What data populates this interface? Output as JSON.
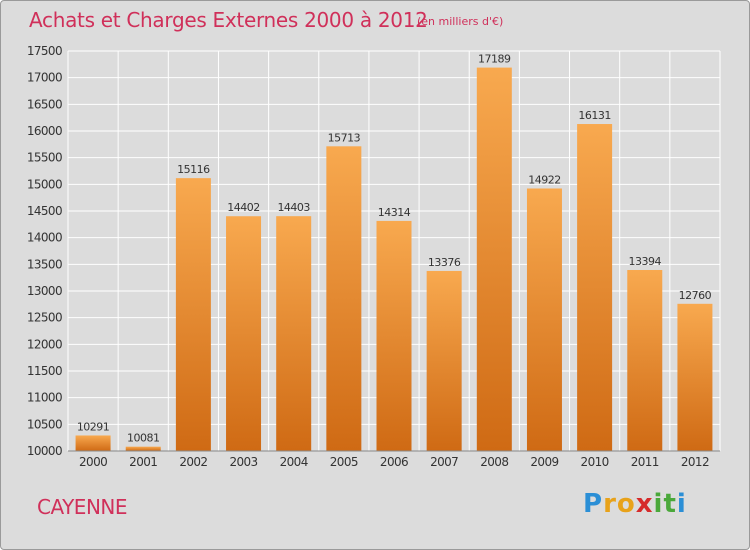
{
  "title": "Achats et Charges Externes 2000 à 2012",
  "unit": "(en milliers d'€)",
  "city": "CAYENNE",
  "logo": {
    "letters": [
      "P",
      "r",
      "o",
      "x",
      "i",
      "t",
      "i"
    ],
    "colors": [
      "#2b8fd6",
      "#e8a21a",
      "#e8a21a",
      "#d62b2b",
      "#4aa83a",
      "#4aa83a",
      "#2b8fd6"
    ]
  },
  "colors": {
    "title": "#d0305a",
    "bar_top": "#f8a94f",
    "bar_bottom": "#cf6a14",
    "background": "#dcdcdc",
    "grid": "#ffffff"
  },
  "chart_data": {
    "type": "bar",
    "title": "Achats et Charges Externes 2000 à 2012",
    "categories": [
      "2000",
      "2001",
      "2002",
      "2003",
      "2004",
      "2005",
      "2006",
      "2007",
      "2008",
      "2009",
      "2010",
      "2011",
      "2012"
    ],
    "values": [
      10291,
      10081,
      15116,
      14402,
      14403,
      15713,
      14314,
      13376,
      17189,
      14922,
      16131,
      13394,
      12760
    ],
    "ylim": [
      10000,
      17500
    ],
    "yticks": [
      10000,
      10500,
      11000,
      11500,
      12000,
      12500,
      13000,
      13500,
      14000,
      14500,
      15000,
      15500,
      16000,
      16500,
      17000,
      17500
    ],
    "grid": true,
    "xlabel": "",
    "ylabel": ""
  }
}
